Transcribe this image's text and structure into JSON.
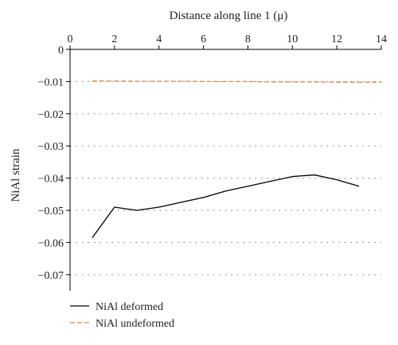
{
  "chart_data": {
    "type": "line",
    "xlabel": "Distance along line 1 (μ)",
    "ylabel": "NiAl strain",
    "xlim": [
      0,
      14
    ],
    "ylim": [
      -0.075,
      0
    ],
    "x_ticks": [
      0,
      2,
      4,
      6,
      8,
      10,
      12,
      14
    ],
    "x_tick_labels": [
      "0",
      "2",
      "4",
      "6",
      "8",
      "10",
      "12",
      "14"
    ],
    "y_ticks": [
      0,
      -0.01,
      -0.02,
      -0.03,
      -0.04,
      -0.05,
      -0.06,
      -0.07
    ],
    "y_tick_labels": [
      "0",
      "−0.01",
      "−0.02",
      "−0.03",
      "−0.04",
      "−0.05",
      "−0.06",
      "−0.07"
    ],
    "x_axis_position": "top",
    "grid": "horizontal-dotted",
    "legend_position": "bottom-left",
    "series": [
      {
        "name": "NiAl deformed",
        "color": "#000000",
        "style": "solid",
        "x": [
          1,
          2,
          3,
          4,
          5,
          6,
          7,
          8,
          9,
          10,
          11,
          12,
          13
        ],
        "y": [
          -0.0585,
          -0.049,
          -0.05,
          -0.049,
          -0.0475,
          -0.046,
          -0.044,
          -0.0425,
          -0.041,
          -0.0395,
          -0.039,
          -0.0405,
          -0.0425
        ]
      },
      {
        "name": "NiAl undeformed",
        "color": "#e08a4a",
        "style": "dashed",
        "x": [
          1,
          2,
          3,
          4,
          5,
          6,
          7,
          8,
          9,
          10,
          11,
          12,
          13,
          14
        ],
        "y": [
          -0.0098,
          -0.0098,
          -0.0099,
          -0.0099,
          -0.0099,
          -0.01,
          -0.01,
          -0.01,
          -0.0101,
          -0.0101,
          -0.0101,
          -0.0102,
          -0.0102,
          -0.0102
        ]
      }
    ]
  }
}
